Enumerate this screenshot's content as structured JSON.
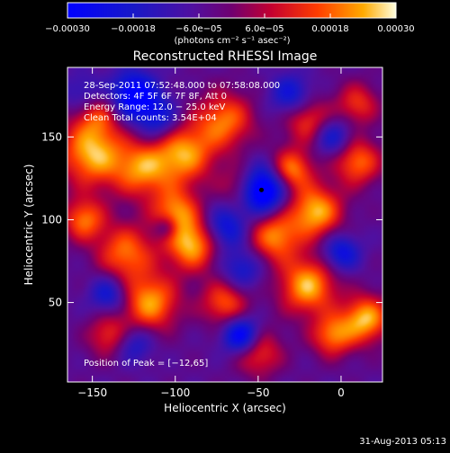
{
  "chart_data": {
    "type": "heatmap",
    "title": "Reconstructed RHESSI Image",
    "xlabel": "Heliocentric X (arcsec)",
    "ylabel": "Heliocentric Y (arcsec)",
    "xlim": [
      -165,
      25
    ],
    "ylim": [
      2,
      192
    ],
    "xticks": [
      {
        "value": -150,
        "label": "−150"
      },
      {
        "value": -100,
        "label": "−100"
      },
      {
        "value": -50,
        "label": "−50"
      },
      {
        "value": 0,
        "label": "0"
      }
    ],
    "yticks": [
      {
        "value": 50,
        "label": "50"
      },
      {
        "value": 100,
        "label": "100"
      },
      {
        "value": 150,
        "label": "150"
      }
    ],
    "colorbar": {
      "range": [
        -0.0003,
        0.0003
      ],
      "ticks": [
        {
          "value": -0.0003,
          "label": "−0.00030"
        },
        {
          "value": -0.00018,
          "label": "−0.00018"
        },
        {
          "value": -6e-05,
          "label": "−6.0e−05"
        },
        {
          "value": 6e-05,
          "label": "6.0e−05"
        },
        {
          "value": 0.00018,
          "label": "0.00018"
        },
        {
          "value": 0.0003,
          "label": "0.00030"
        }
      ],
      "units": "(photons cm⁻² s⁻¹ asec⁻²)"
    },
    "annotations": [
      "28-Sep-2011 07:52:48.000 to 07:58:08.000",
      "Detectors: 4F 5F 6F 7F 8F, Att 0",
      "Energy Range: 12.0 − 25.0 keV",
      "Clean     Total counts: 3.54E+04",
      "Position of Peak = [−12,65]"
    ],
    "marker": {
      "x": -48,
      "y": 118
    },
    "blobs": [
      {
        "x": -125,
        "y": 175,
        "r": 10,
        "a": -0.0003
      },
      {
        "x": -148,
        "y": 165,
        "r": 10,
        "a": 0.00018
      },
      {
        "x": -150,
        "y": 140,
        "r": 14,
        "a": 0.0003
      },
      {
        "x": -155,
        "y": 100,
        "r": 9,
        "a": 0.00024
      },
      {
        "x": -120,
        "y": 130,
        "r": 12,
        "a": 0.00024
      },
      {
        "x": -95,
        "y": 140,
        "r": 13,
        "a": 0.00028
      },
      {
        "x": -70,
        "y": 160,
        "r": 12,
        "a": 0.00024
      },
      {
        "x": -20,
        "y": 160,
        "r": 10,
        "a": 0.0002
      },
      {
        "x": 10,
        "y": 170,
        "r": 9,
        "a": 0.00018
      },
      {
        "x": 10,
        "y": 135,
        "r": 10,
        "a": 0.00024
      },
      {
        "x": -30,
        "y": 130,
        "r": 9,
        "a": 0.00026
      },
      {
        "x": -15,
        "y": 105,
        "r": 11,
        "a": 0.0003
      },
      {
        "x": -100,
        "y": 105,
        "r": 10,
        "a": 0.00024
      },
      {
        "x": -90,
        "y": 85,
        "r": 11,
        "a": 0.0003
      },
      {
        "x": -130,
        "y": 80,
        "r": 12,
        "a": 0.00024
      },
      {
        "x": -115,
        "y": 50,
        "r": 12,
        "a": 0.00028
      },
      {
        "x": -40,
        "y": 90,
        "r": 11,
        "a": 0.00026
      },
      {
        "x": -20,
        "y": 60,
        "r": 12,
        "a": 0.0003
      },
      {
        "x": 15,
        "y": 40,
        "r": 10,
        "a": 0.0003
      },
      {
        "x": -70,
        "y": 50,
        "r": 10,
        "a": 0.00022
      },
      {
        "x": -50,
        "y": 20,
        "r": 10,
        "a": 0.0002
      },
      {
        "x": -5,
        "y": 30,
        "r": 9,
        "a": 0.00024
      },
      {
        "x": -140,
        "y": 30,
        "r": 9,
        "a": 0.00018
      },
      {
        "x": -60,
        "y": 120,
        "r": 9,
        "a": 0.00018
      },
      {
        "x": -48,
        "y": 118,
        "r": 10,
        "a": -0.0004
      },
      {
        "x": -155,
        "y": 175,
        "r": 9,
        "a": -0.00015
      },
      {
        "x": -30,
        "y": 175,
        "r": 9,
        "a": -0.00018
      },
      {
        "x": -5,
        "y": 150,
        "r": 8,
        "a": -0.00018
      },
      {
        "x": -70,
        "y": 95,
        "r": 9,
        "a": -0.0002
      },
      {
        "x": -105,
        "y": 95,
        "r": 5,
        "a": -0.00015
      },
      {
        "x": -60,
        "y": 30,
        "r": 8,
        "a": -0.0003
      },
      {
        "x": 0,
        "y": 80,
        "r": 8,
        "a": -0.0002
      },
      {
        "x": -140,
        "y": 55,
        "r": 8,
        "a": -0.00018
      },
      {
        "x": -110,
        "y": 160,
        "r": 9,
        "a": -0.00018
      },
      {
        "x": -60,
        "y": 70,
        "r": 9,
        "a": -0.00016
      },
      {
        "x": -125,
        "y": 25,
        "r": 8,
        "a": -0.00015
      }
    ]
  },
  "footer": {
    "timestamp": "31-Aug-2013 05:13"
  }
}
